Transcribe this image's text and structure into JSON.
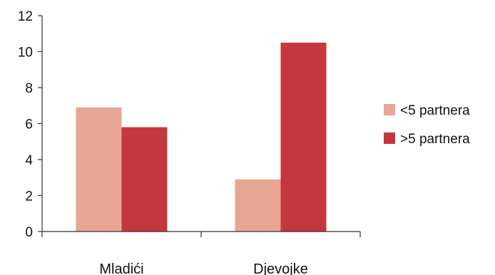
{
  "chart_data": {
    "type": "bar",
    "categories": [
      "Mladići",
      "Djevojke"
    ],
    "series": [
      {
        "name": "<5 partnera",
        "color": "#e6a693",
        "values": [
          6.9,
          2.9
        ]
      },
      {
        "name": ">5 partnera",
        "color": "#c5373e",
        "values": [
          5.8,
          10.5
        ]
      }
    ],
    "yticks": [
      0,
      2,
      4,
      6,
      8,
      10,
      12
    ],
    "ylim": [
      0,
      12
    ],
    "grid": false,
    "legend_position": "right"
  }
}
